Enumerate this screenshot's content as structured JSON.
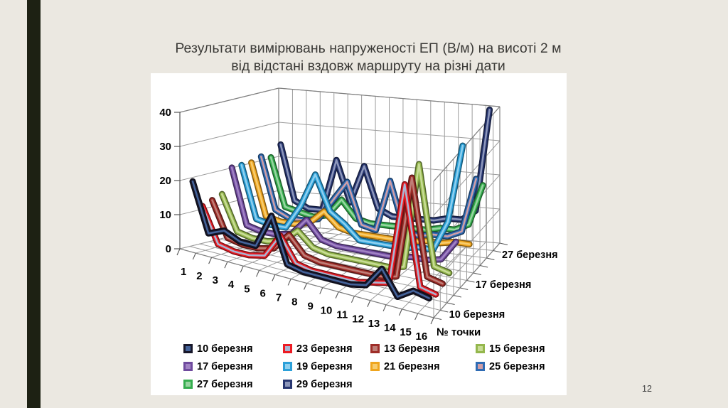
{
  "slide": {
    "title_line1": "Результати вимірювань напруженості ЕП (В/м) на висоті 2 м",
    "title_line2": "від відстані вздовж маршруту на різні дати",
    "page_number": "12",
    "background_color": "#ebe8e1",
    "accent_bar_color": "#1d2113"
  },
  "chart_data": {
    "type": "line",
    "projection": "3d",
    "title": "",
    "xlabel": "№ точки",
    "categories": [
      "1",
      "2",
      "3",
      "4",
      "5",
      "6",
      "7",
      "8",
      "9",
      "10",
      "11",
      "12",
      "13",
      "14",
      "15",
      "16"
    ],
    "value_axis": {
      "min": 0,
      "max": 40,
      "step": 10,
      "ticks": [
        "0",
        "10",
        "20",
        "30",
        "40"
      ]
    },
    "depth_axis": {
      "labels": [
        "10 березня",
        "17 березня",
        "27 березня"
      ],
      "label_slots": [
        1,
        5,
        9
      ]
    },
    "legend_position": "bottom",
    "grid": true,
    "series": [
      {
        "name": "10 березня",
        "color": "#17172a",
        "core": "#44639a",
        "values": [
          20,
          6,
          8,
          6,
          6,
          16,
          3,
          2,
          2,
          2,
          2,
          3,
          9,
          2,
          5,
          4
        ]
      },
      {
        "name": "23 березня",
        "color": "#ec1c24",
        "core": "#a9b6d3",
        "values": [
          12,
          2,
          1,
          1,
          2,
          9,
          2,
          1,
          1,
          1,
          1,
          2,
          3,
          33,
          4,
          3
        ]
      },
      {
        "name": "13 березня",
        "color": "#9e2d28",
        "core": "#bf7f78",
        "values": [
          13,
          3,
          2,
          2,
          3,
          8,
          3,
          2,
          2,
          2,
          2,
          2,
          3,
          33,
          5,
          4
        ]
      },
      {
        "name": "15 березня",
        "color": "#94b74d",
        "core": "#c8dc96",
        "values": [
          14,
          4,
          3,
          3,
          4,
          8,
          4,
          3,
          3,
          3,
          3,
          3,
          4,
          35,
          6,
          5
        ]
      },
      {
        "name": "17 березня",
        "color": "#6f4a9e",
        "core": "#a183c4",
        "values": [
          21,
          5,
          4,
          4,
          5,
          10,
          5,
          4,
          4,
          4,
          4,
          4,
          5,
          5,
          6,
          12
        ]
      },
      {
        "name": "19 березня",
        "color": "#2ba0d9",
        "core": "#8fd0ef",
        "values": [
          21,
          6,
          5,
          5,
          12,
          22,
          12,
          9,
          5,
          5,
          5,
          5,
          6,
          6,
          15,
          38
        ]
      },
      {
        "name": "21 березня",
        "color": "#efa51e",
        "core": "#f7cc6e",
        "values": [
          21,
          6,
          5,
          5,
          6,
          10,
          6,
          5,
          5,
          5,
          5,
          5,
          6,
          6,
          7,
          7
        ]
      },
      {
        "name": "25 березня",
        "color": "#2f6cb4",
        "core": "#cf9ea6",
        "values": [
          22,
          7,
          5,
          5,
          6,
          12,
          18,
          6,
          5,
          20,
          6,
          5,
          6,
          6,
          8,
          24
        ]
      },
      {
        "name": "27 березня",
        "color": "#35ad4e",
        "core": "#97d5a0",
        "values": [
          21,
          7,
          6,
          5,
          6,
          11,
          6,
          5,
          5,
          5,
          5,
          5,
          6,
          6,
          8,
          20
        ]
      },
      {
        "name": "29 березня",
        "color": "#273670",
        "core": "#8d97bb",
        "values": [
          24,
          8,
          6,
          6,
          21,
          9,
          20,
          8,
          6,
          6,
          6,
          6,
          7,
          7,
          10,
          40
        ]
      }
    ]
  }
}
